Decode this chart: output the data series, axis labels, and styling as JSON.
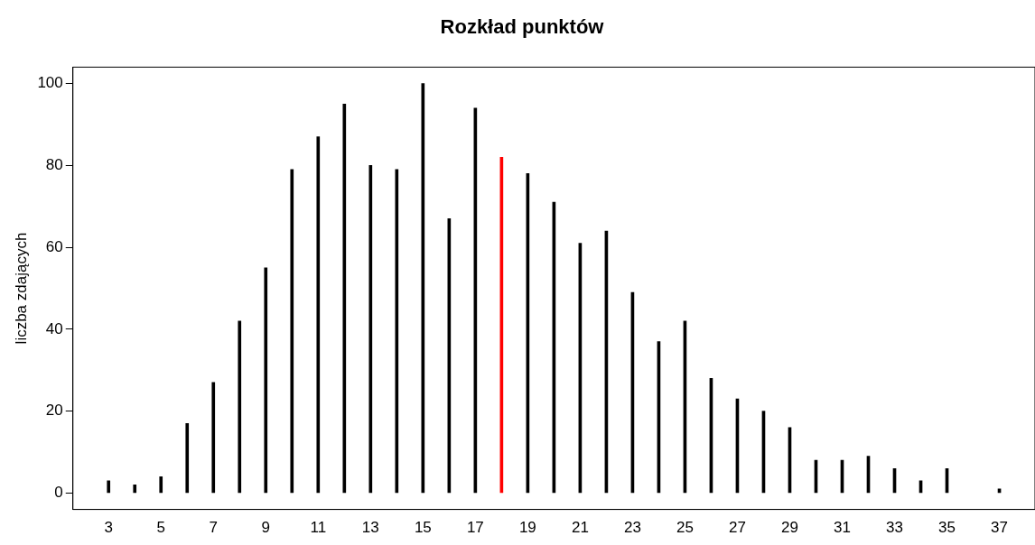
{
  "chart_data": {
    "type": "bar",
    "title": "Rozkład punktów",
    "ylabel": "liczba zdających",
    "x": [
      3,
      4,
      5,
      6,
      7,
      8,
      9,
      10,
      11,
      12,
      13,
      14,
      15,
      16,
      17,
      18,
      19,
      20,
      21,
      22,
      23,
      24,
      25,
      26,
      27,
      28,
      29,
      30,
      31,
      32,
      33,
      34,
      35,
      37
    ],
    "values": [
      3,
      2,
      4,
      17,
      27,
      42,
      55,
      79,
      87,
      95,
      80,
      79,
      100,
      67,
      94,
      82,
      78,
      71,
      61,
      64,
      49,
      37,
      42,
      28,
      23,
      20,
      16,
      8,
      8,
      9,
      6,
      3,
      6,
      1
    ],
    "colors": [
      "#000000",
      "#000000",
      "#000000",
      "#000000",
      "#000000",
      "#000000",
      "#000000",
      "#000000",
      "#000000",
      "#000000",
      "#000000",
      "#000000",
      "#000000",
      "#000000",
      "#000000",
      "#ff0000",
      "#000000",
      "#000000",
      "#000000",
      "#000000",
      "#000000",
      "#000000",
      "#000000",
      "#000000",
      "#000000",
      "#000000",
      "#000000",
      "#000000",
      "#000000",
      "#000000",
      "#000000",
      "#000000",
      "#000000",
      "#000000"
    ],
    "xlim": [
      1.64,
      38.36
    ],
    "xticks": [
      3,
      5,
      7,
      9,
      11,
      13,
      15,
      17,
      19,
      21,
      23,
      25,
      27,
      29,
      31,
      33,
      35,
      37
    ],
    "ylim": [
      -4,
      104
    ],
    "yticks": [
      0,
      20,
      40,
      60,
      80,
      100
    ],
    "grid": false,
    "legend": false
  }
}
